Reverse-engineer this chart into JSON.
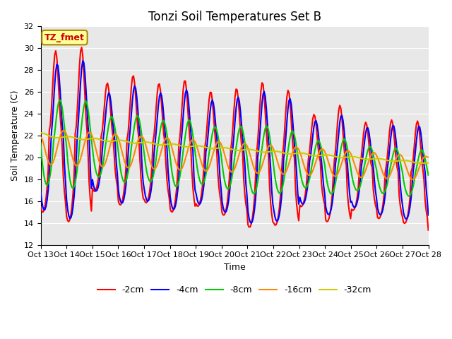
{
  "title": "Tonzi Soil Temperatures Set B",
  "xlabel": "Time",
  "ylabel": "Soil Temperature (C)",
  "ylim": [
    12,
    32
  ],
  "yticks": [
    12,
    14,
    16,
    18,
    20,
    22,
    24,
    26,
    28,
    30,
    32
  ],
  "xtick_labels": [
    "Oct 13",
    "Oct 14",
    "Oct 15",
    "Oct 16",
    "Oct 17",
    "Oct 18",
    "Oct 19",
    "Oct 20",
    "Oct 21",
    "Oct 22",
    "Oct 23",
    "Oct 24",
    "Oct 25",
    "Oct 26",
    "Oct 27",
    "Oct 28"
  ],
  "series_colors": [
    "#ff0000",
    "#0000ff",
    "#00cc00",
    "#ff8800",
    "#cccc00"
  ],
  "series_labels": [
    "-2cm",
    "-4cm",
    "-8cm",
    "-16cm",
    "-32cm"
  ],
  "line_width": 1.5,
  "plot_bg": "#e8e8e8",
  "annotation_text": "TZ_fmet",
  "annotation_bg": "#ffff99",
  "annotation_border": "#aa8800",
  "title_fontsize": 12,
  "axis_label_fontsize": 9,
  "tick_fontsize": 8
}
